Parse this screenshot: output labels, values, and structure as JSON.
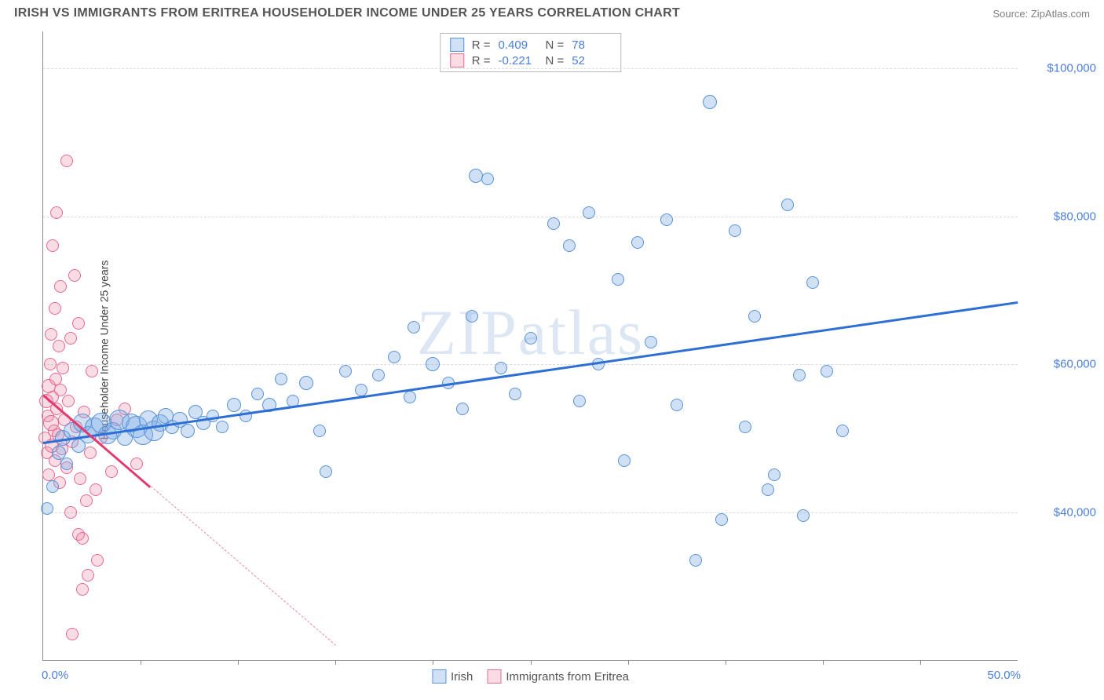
{
  "title": "IRISH VS IMMIGRANTS FROM ERITREA HOUSEHOLDER INCOME UNDER 25 YEARS CORRELATION CHART",
  "source": "Source: ZipAtlas.com",
  "watermark": "ZIPatlas",
  "y_axis_label": "Householder Income Under 25 years",
  "y_ticks": [
    {
      "v": 40000,
      "label": "$40,000"
    },
    {
      "v": 60000,
      "label": "$60,000"
    },
    {
      "v": 80000,
      "label": "$80,000"
    },
    {
      "v": 100000,
      "label": "$100,000"
    }
  ],
  "y_range": [
    20000,
    105000
  ],
  "x_ticks_labels": {
    "min": "0.0%",
    "max": "50.0%"
  },
  "x_range": [
    0,
    50
  ],
  "x_minor_ticks": [
    5,
    10,
    15,
    20,
    25,
    30,
    35,
    40,
    45
  ],
  "series": [
    {
      "name": "Irish",
      "fill": "rgba(120,170,230,0.35)",
      "stroke": "#5a93d6",
      "trend_color": "#2e6fd6",
      "stats": {
        "R": "0.409",
        "N": "78"
      },
      "trend": {
        "x1": 0,
        "y1": 49500,
        "x2": 50,
        "y2": 68500,
        "dash_from_x": null
      },
      "points": [
        {
          "x": 0.2,
          "y": 40500,
          "r": 8
        },
        {
          "x": 0.5,
          "y": 43500,
          "r": 8
        },
        {
          "x": 0.8,
          "y": 48000,
          "r": 9
        },
        {
          "x": 1.0,
          "y": 50000,
          "r": 10
        },
        {
          "x": 1.2,
          "y": 46500,
          "r": 8
        },
        {
          "x": 1.5,
          "y": 51000,
          "r": 11
        },
        {
          "x": 1.8,
          "y": 49000,
          "r": 9
        },
        {
          "x": 2.0,
          "y": 52000,
          "r": 12
        },
        {
          "x": 2.3,
          "y": 50500,
          "r": 11
        },
        {
          "x": 2.6,
          "y": 51500,
          "r": 12
        },
        {
          "x": 3.0,
          "y": 52000,
          "r": 13
        },
        {
          "x": 3.3,
          "y": 50500,
          "r": 12
        },
        {
          "x": 3.6,
          "y": 51000,
          "r": 11
        },
        {
          "x": 3.9,
          "y": 52500,
          "r": 13
        },
        {
          "x": 4.2,
          "y": 50000,
          "r": 10
        },
        {
          "x": 4.5,
          "y": 52000,
          "r": 12
        },
        {
          "x": 4.8,
          "y": 51500,
          "r": 14
        },
        {
          "x": 5.1,
          "y": 50500,
          "r": 13
        },
        {
          "x": 5.4,
          "y": 52500,
          "r": 12
        },
        {
          "x": 5.7,
          "y": 51000,
          "r": 13
        },
        {
          "x": 6.0,
          "y": 52000,
          "r": 11
        },
        {
          "x": 6.3,
          "y": 53000,
          "r": 10
        },
        {
          "x": 6.6,
          "y": 51500,
          "r": 9
        },
        {
          "x": 7.0,
          "y": 52500,
          "r": 10
        },
        {
          "x": 7.4,
          "y": 51000,
          "r": 9
        },
        {
          "x": 7.8,
          "y": 53500,
          "r": 9
        },
        {
          "x": 8.2,
          "y": 52000,
          "r": 9
        },
        {
          "x": 8.7,
          "y": 53000,
          "r": 8
        },
        {
          "x": 9.2,
          "y": 51500,
          "r": 8
        },
        {
          "x": 9.8,
          "y": 54500,
          "r": 9
        },
        {
          "x": 10.4,
          "y": 53000,
          "r": 8
        },
        {
          "x": 11.0,
          "y": 56000,
          "r": 8
        },
        {
          "x": 11.6,
          "y": 54500,
          "r": 9
        },
        {
          "x": 12.2,
          "y": 58000,
          "r": 8
        },
        {
          "x": 12.8,
          "y": 55000,
          "r": 8
        },
        {
          "x": 13.5,
          "y": 57500,
          "r": 9
        },
        {
          "x": 14.2,
          "y": 51000,
          "r": 8
        },
        {
          "x": 14.5,
          "y": 45500,
          "r": 8
        },
        {
          "x": 15.5,
          "y": 59000,
          "r": 8
        },
        {
          "x": 16.3,
          "y": 56500,
          "r": 8
        },
        {
          "x": 17.2,
          "y": 58500,
          "r": 8
        },
        {
          "x": 18.0,
          "y": 61000,
          "r": 8
        },
        {
          "x": 18.8,
          "y": 55500,
          "r": 8
        },
        {
          "x": 19.0,
          "y": 65000,
          "r": 8
        },
        {
          "x": 20.0,
          "y": 60000,
          "r": 9
        },
        {
          "x": 20.8,
          "y": 57500,
          "r": 8
        },
        {
          "x": 21.5,
          "y": 54000,
          "r": 8
        },
        {
          "x": 22.0,
          "y": 66500,
          "r": 8
        },
        {
          "x": 22.2,
          "y": 85500,
          "r": 9
        },
        {
          "x": 22.8,
          "y": 85000,
          "r": 8
        },
        {
          "x": 23.5,
          "y": 59500,
          "r": 8
        },
        {
          "x": 24.2,
          "y": 56000,
          "r": 8
        },
        {
          "x": 25.0,
          "y": 63500,
          "r": 8
        },
        {
          "x": 26.2,
          "y": 79000,
          "r": 8
        },
        {
          "x": 27.0,
          "y": 76000,
          "r": 8
        },
        {
          "x": 27.5,
          "y": 55000,
          "r": 8
        },
        {
          "x": 28.0,
          "y": 80500,
          "r": 8
        },
        {
          "x": 28.5,
          "y": 60000,
          "r": 8
        },
        {
          "x": 29.5,
          "y": 71500,
          "r": 8
        },
        {
          "x": 29.8,
          "y": 47000,
          "r": 8
        },
        {
          "x": 30.5,
          "y": 76500,
          "r": 8
        },
        {
          "x": 31.2,
          "y": 63000,
          "r": 8
        },
        {
          "x": 32.0,
          "y": 79500,
          "r": 8
        },
        {
          "x": 32.5,
          "y": 54500,
          "r": 8
        },
        {
          "x": 33.5,
          "y": 33500,
          "r": 8
        },
        {
          "x": 34.2,
          "y": 95500,
          "r": 9
        },
        {
          "x": 34.8,
          "y": 39000,
          "r": 8
        },
        {
          "x": 35.5,
          "y": 78000,
          "r": 8
        },
        {
          "x": 36.0,
          "y": 51500,
          "r": 8
        },
        {
          "x": 36.5,
          "y": 66500,
          "r": 8
        },
        {
          "x": 37.5,
          "y": 45000,
          "r": 8
        },
        {
          "x": 38.2,
          "y": 81500,
          "r": 8
        },
        {
          "x": 38.8,
          "y": 58500,
          "r": 8
        },
        {
          "x": 39.0,
          "y": 39500,
          "r": 8
        },
        {
          "x": 39.5,
          "y": 71000,
          "r": 8
        },
        {
          "x": 40.2,
          "y": 59000,
          "r": 8
        },
        {
          "x": 41.0,
          "y": 51000,
          "r": 8
        },
        {
          "x": 37.2,
          "y": 43000,
          "r": 8
        }
      ]
    },
    {
      "name": "Immigrants from Eritrea",
      "fill": "rgba(240,140,170,0.30)",
      "stroke": "#e66a92",
      "trend_color": "#e03c70",
      "stats": {
        "R": "-0.221",
        "N": "52"
      },
      "trend": {
        "x1": 0,
        "y1": 56000,
        "x2": 15,
        "y2": 22000,
        "dash_from_x": 5.5
      },
      "points": [
        {
          "x": 0.1,
          "y": 50000,
          "r": 8
        },
        {
          "x": 0.15,
          "y": 55000,
          "r": 9
        },
        {
          "x": 0.2,
          "y": 48000,
          "r": 8
        },
        {
          "x": 0.25,
          "y": 53000,
          "r": 8
        },
        {
          "x": 0.3,
          "y": 57000,
          "r": 9
        },
        {
          "x": 0.3,
          "y": 45000,
          "r": 8
        },
        {
          "x": 0.35,
          "y": 60000,
          "r": 8
        },
        {
          "x": 0.4,
          "y": 52000,
          "r": 10
        },
        {
          "x": 0.4,
          "y": 64000,
          "r": 8
        },
        {
          "x": 0.45,
          "y": 49000,
          "r": 9
        },
        {
          "x": 0.5,
          "y": 55500,
          "r": 8
        },
        {
          "x": 0.5,
          "y": 76000,
          "r": 8
        },
        {
          "x": 0.55,
          "y": 51000,
          "r": 8
        },
        {
          "x": 0.6,
          "y": 47000,
          "r": 8
        },
        {
          "x": 0.6,
          "y": 67500,
          "r": 8
        },
        {
          "x": 0.65,
          "y": 58000,
          "r": 8
        },
        {
          "x": 0.7,
          "y": 54000,
          "r": 8
        },
        {
          "x": 0.7,
          "y": 80500,
          "r": 8
        },
        {
          "x": 0.75,
          "y": 50500,
          "r": 8
        },
        {
          "x": 0.8,
          "y": 62500,
          "r": 8
        },
        {
          "x": 0.85,
          "y": 44000,
          "r": 8
        },
        {
          "x": 0.9,
          "y": 56500,
          "r": 8
        },
        {
          "x": 0.9,
          "y": 70500,
          "r": 8
        },
        {
          "x": 0.95,
          "y": 48500,
          "r": 8
        },
        {
          "x": 1.0,
          "y": 59500,
          "r": 8
        },
        {
          "x": 1.1,
          "y": 52500,
          "r": 8
        },
        {
          "x": 1.2,
          "y": 87500,
          "r": 8
        },
        {
          "x": 1.2,
          "y": 46000,
          "r": 8
        },
        {
          "x": 1.3,
          "y": 55000,
          "r": 8
        },
        {
          "x": 1.4,
          "y": 40000,
          "r": 8
        },
        {
          "x": 1.4,
          "y": 63500,
          "r": 8
        },
        {
          "x": 1.5,
          "y": 49500,
          "r": 8
        },
        {
          "x": 1.6,
          "y": 72000,
          "r": 8
        },
        {
          "x": 1.7,
          "y": 51500,
          "r": 8
        },
        {
          "x": 1.8,
          "y": 37000,
          "r": 8
        },
        {
          "x": 1.8,
          "y": 65500,
          "r": 8
        },
        {
          "x": 1.9,
          "y": 44500,
          "r": 8
        },
        {
          "x": 2.0,
          "y": 36500,
          "r": 8
        },
        {
          "x": 2.1,
          "y": 53500,
          "r": 8
        },
        {
          "x": 2.2,
          "y": 41500,
          "r": 8
        },
        {
          "x": 2.3,
          "y": 31500,
          "r": 8
        },
        {
          "x": 2.4,
          "y": 48000,
          "r": 8
        },
        {
          "x": 2.5,
          "y": 59000,
          "r": 8
        },
        {
          "x": 2.7,
          "y": 43000,
          "r": 8
        },
        {
          "x": 2.8,
          "y": 33500,
          "r": 8
        },
        {
          "x": 3.0,
          "y": 50000,
          "r": 8
        },
        {
          "x": 3.5,
          "y": 45500,
          "r": 8
        },
        {
          "x": 3.8,
          "y": 52500,
          "r": 8
        },
        {
          "x": 4.2,
          "y": 54000,
          "r": 8
        },
        {
          "x": 4.8,
          "y": 46500,
          "r": 8
        },
        {
          "x": 1.5,
          "y": 23500,
          "r": 8
        },
        {
          "x": 2.0,
          "y": 29500,
          "r": 8
        }
      ]
    }
  ],
  "legend_labels": {
    "series1": "Irish",
    "series2": "Immigrants from Eritrea"
  },
  "stats_labels": {
    "R": "R =",
    "N": "N ="
  }
}
